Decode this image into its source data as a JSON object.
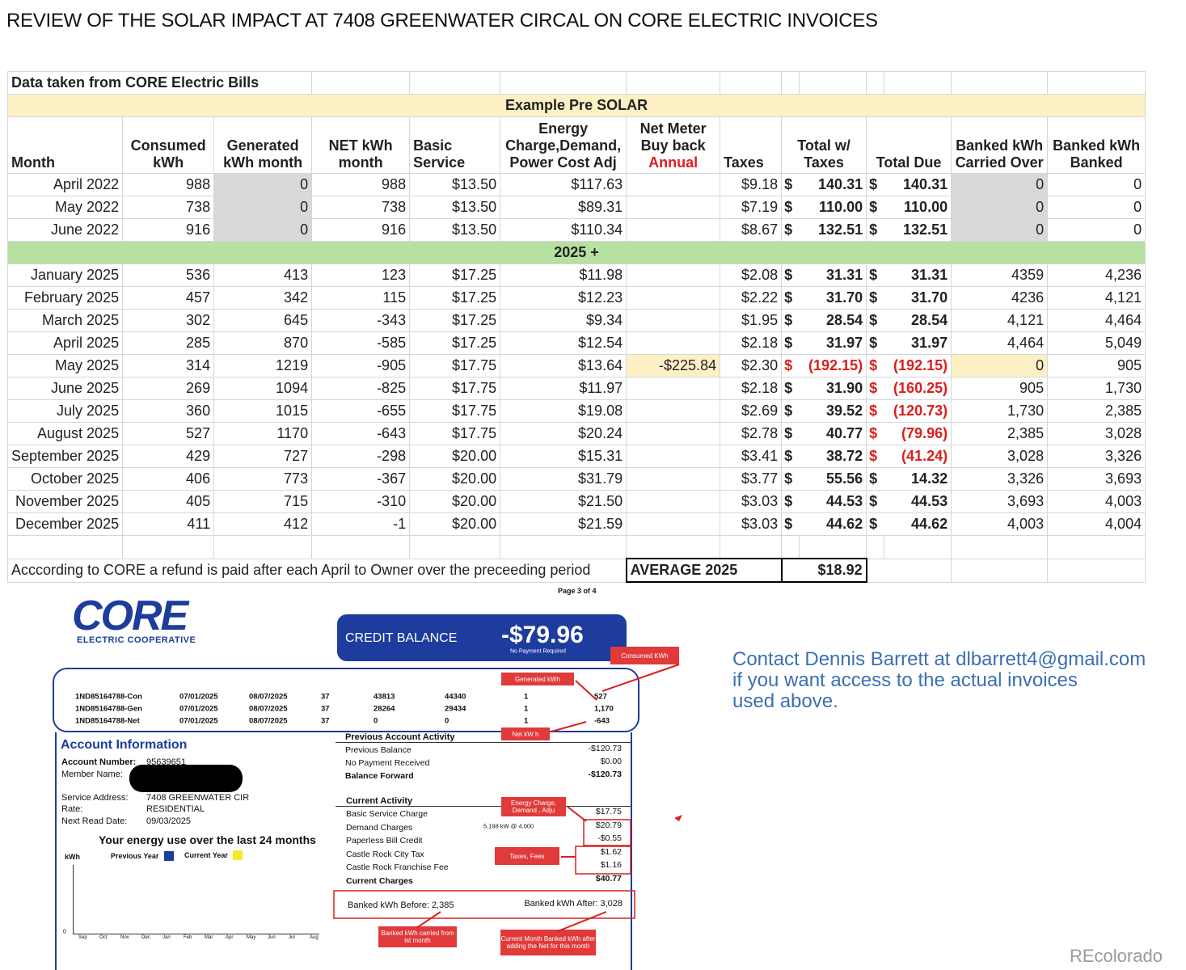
{
  "title": "REVIEW OF THE SOLAR IMPACT AT 7408 GREENWATER CIRCAL ON CORE ELECTRIC INVOICES",
  "table": {
    "note": "Data taken from CORE Electric Bills",
    "section_pre": "Example Pre SOLAR",
    "section_post": "2025 +",
    "headers": [
      "Month",
      "Consumed kWh",
      "Generated kWh month",
      "NET kWh month",
      "Basic Service",
      "Energy Charge,Demand, Power Cost Adj",
      "Net Meter Buy back",
      "Taxes",
      "Total w/ Taxes",
      "Total Due",
      "Banked kWh Carried Over",
      "Banked kWh Banked"
    ],
    "header_note": "Annual",
    "pre_rows": [
      [
        "April 2022",
        "988",
        "0",
        "988",
        "$13.50",
        "$117.63",
        null,
        "$9.18",
        "$",
        "140.31",
        "$",
        "140.31",
        "0",
        "0"
      ],
      [
        "May 2022",
        "738",
        "0",
        "738",
        "$13.50",
        "$89.31",
        null,
        "$7.19",
        "$",
        "110.00",
        "$",
        "110.00",
        "0",
        "0"
      ],
      [
        "June 2022",
        "916",
        "0",
        "916",
        "$13.50",
        "$110.34",
        null,
        "$8.67",
        "$",
        "132.51",
        "$",
        "132.51",
        "0",
        "0"
      ]
    ],
    "rows": [
      [
        "January 2025",
        "536",
        "413",
        "123",
        "$17.25",
        "$11.98",
        null,
        "$2.08",
        "$",
        "31.31",
        "$",
        "31.31",
        "4359",
        "4,236"
      ],
      [
        "February 2025",
        "457",
        "342",
        "115",
        "$17.25",
        "$12.23",
        null,
        "$2.22",
        "$",
        "31.70",
        "$",
        "31.70",
        "4236",
        "4,121"
      ],
      [
        "March 2025",
        "302",
        "645",
        "-343",
        "$17.25",
        "$9.34",
        null,
        "$1.95",
        "$",
        "28.54",
        "$",
        "28.54",
        "4,121",
        "4,464"
      ],
      [
        "April 2025",
        "285",
        "870",
        "-585",
        "$17.25",
        "$12.54",
        null,
        "$2.18",
        "$",
        "31.97",
        "$",
        "31.97",
        "4,464",
        "5,049"
      ],
      [
        "May 2025",
        "314",
        "1219",
        "-905",
        "$17.75",
        "$13.64",
        "-$225.84",
        "$2.30",
        "$",
        "(192.15)",
        "$",
        "(192.15)",
        "0",
        "905"
      ],
      [
        "June 2025",
        "269",
        "1094",
        "-825",
        "$17.75",
        "$11.97",
        null,
        "$2.18",
        "$",
        "31.90",
        "$",
        "(160.25)",
        "905",
        "1,730"
      ],
      [
        "July 2025",
        "360",
        "1015",
        "-655",
        "$17.75",
        "$19.08",
        null,
        "$2.69",
        "$",
        "39.52",
        "$",
        "(120.73)",
        "1,730",
        "2,385"
      ],
      [
        "August 2025",
        "527",
        "1170",
        "-643",
        "$17.75",
        "$20.24",
        null,
        "$2.78",
        "$",
        "40.77",
        "$",
        "(79.96)",
        "2,385",
        "3,028"
      ],
      [
        "September 2025",
        "429",
        "727",
        "-298",
        "$20.00",
        "$15.31",
        null,
        "$3.41",
        "$",
        "38.72",
        "$",
        "(41.24)",
        "3,028",
        "3,326"
      ],
      [
        "October 2025",
        "406",
        "773",
        "-367",
        "$20.00",
        "$31.79",
        null,
        "$3.77",
        "$",
        "55.56",
        "$",
        "14.32",
        "3,326",
        "3,693"
      ],
      [
        "November 2025",
        "405",
        "715",
        "-310",
        "$20.00",
        "$21.50",
        null,
        "$3.03",
        "$",
        "44.53",
        "$",
        "44.53",
        "3,693",
        "4,003"
      ],
      [
        "December 2025",
        "411",
        "412",
        "-1",
        "$20.00",
        "$21.59",
        null,
        "$3.03",
        "$",
        "44.62",
        "$",
        "44.62",
        "4,003",
        "4,004"
      ]
    ],
    "footnote": "Acccording to CORE a refund is paid after each April to Owner over the preceeding period",
    "average_label": "AVERAGE 2025",
    "average_value": "$18.92"
  },
  "invoice": {
    "page": "Page 3 of 4",
    "logo": "CORE",
    "logo_sub": "ELECTRIC COOPERATIVE",
    "balance_label": "CREDIT BALANCE",
    "balance": "-$79.96",
    "balance_note": "No Payment Required",
    "meters": [
      [
        "1ND85164788-Con",
        "07/01/2025",
        "08/07/2025",
        "37",
        "43813",
        "44340",
        "1",
        "527"
      ],
      [
        "1ND85164788-Gen",
        "07/01/2025",
        "08/07/2025",
        "37",
        "28264",
        "29434",
        "1",
        "1,170"
      ],
      [
        "1ND85164788-Net",
        "07/01/2025",
        "08/07/2025",
        "37",
        "0",
        "0",
        "1",
        "-643"
      ]
    ],
    "account_title": "Account Information",
    "account": [
      [
        "Account Number:",
        "95639651"
      ],
      [
        "Member Name:"
      ],
      [
        "Service Address:",
        "7408 GREENWATER CIR"
      ],
      [
        "Rate:",
        "RESIDENTIAL"
      ],
      [
        "Next Read Date:",
        "09/03/2025"
      ]
    ],
    "usage_title": "Your energy use over the last 24 months",
    "usage_unit": "kWh",
    "legend": [
      "Previous Year",
      "Current Year"
    ],
    "usage_zero": "0",
    "usage_months": [
      "Sep",
      "Oct",
      "Nov",
      "Dec",
      "Jan",
      "Feb",
      "Mar",
      "Apr",
      "May",
      "Jun",
      "Jul",
      "Aug"
    ],
    "previous_title": "Previous Account Activity",
    "previous": [
      [
        "Previous Balance",
        "-$120.73"
      ],
      [
        "No Payment Received",
        "$0.00"
      ],
      [
        "Balance Forward",
        "-$120.73"
      ]
    ],
    "current_title": "Current Activity",
    "current": [
      [
        "Basic Service Charge",
        "$17.75"
      ],
      [
        "Demand Charges",
        "$20.79"
      ],
      [
        "Paperless Bill Credit",
        "-$0.55"
      ],
      [
        "Castle Rock City Tax",
        "$1.62"
      ],
      [
        "Castle Rock Franchise Fee",
        "$1.16"
      ],
      [
        "Current Charges",
        "$40.77"
      ]
    ],
    "demand_note": "5.198 kW @ 4.000",
    "banked_before": "Banked kWh Before: 2,385",
    "banked_after": "Banked kWh After: 3,028",
    "callouts": [
      "Consumed KWh",
      "Generated kWh",
      "Net kW h",
      "Energy Charge, Demand , Adju",
      "Taxes, Fees",
      "Banked kWh carried from lst month",
      "Current Month Banked kWh after adding the Net for this month"
    ]
  },
  "contact": [
    "Contact Dennis Barrett at dlbarrett4@gmail.com",
    "if you want access to the actual invoices",
    "used above."
  ],
  "watermark": "REcolorado"
}
